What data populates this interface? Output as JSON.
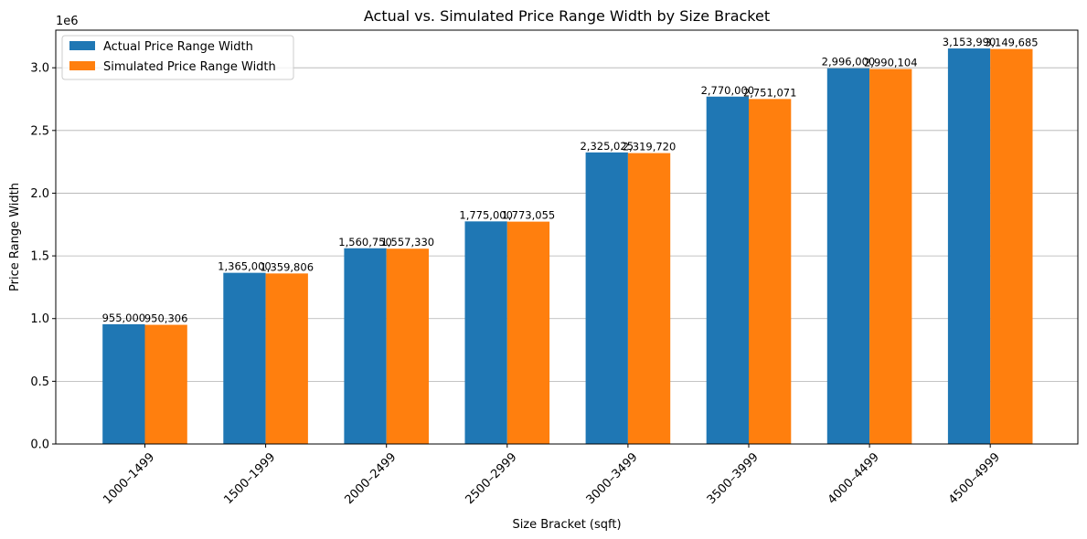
{
  "chart_data": {
    "type": "bar",
    "title": "Actual vs. Simulated Price Range Width by Size Bracket",
    "xlabel": "Size Bracket (sqft)",
    "ylabel": "Price Range Width",
    "offset_text": "1e6",
    "scale": 1000000,
    "ylim": [
      0,
      3300000
    ],
    "yticks": [
      0,
      500000,
      1000000,
      1500000,
      2000000,
      2500000,
      3000000
    ],
    "ytick_labels": [
      "0.0",
      "0.5",
      "1.0",
      "1.5",
      "2.0",
      "2.5",
      "3.0"
    ],
    "grid": "y",
    "legend_position": "top-left",
    "categories": [
      "1000–1499",
      "1500–1999",
      "2000–2499",
      "2500–2999",
      "3000–3499",
      "3500–3999",
      "4000–4499",
      "4500–4999"
    ],
    "series": [
      {
        "name": "Actual Price Range Width",
        "color": "#1f77b4",
        "values": [
          955000,
          1365000,
          1560750,
          1775000,
          2325025,
          2770000,
          2996000,
          3153990
        ],
        "labels": [
          "955,000",
          "1,365,000",
          "1,560,750",
          "1,775,000",
          "2,325,025",
          "2,770,000",
          "2,996,000",
          "3,153,990"
        ]
      },
      {
        "name": "Simulated Price Range Width",
        "color": "#ff7f0e",
        "values": [
          950306,
          1359806,
          1557330,
          1773055,
          2319720,
          2751071,
          2990104,
          3149685
        ],
        "labels": [
          "950,306",
          "1,359,806",
          "1,557,330",
          "1,773,055",
          "2,319,720",
          "2,751,071",
          "2,990,104",
          "3,149,685"
        ]
      }
    ]
  }
}
